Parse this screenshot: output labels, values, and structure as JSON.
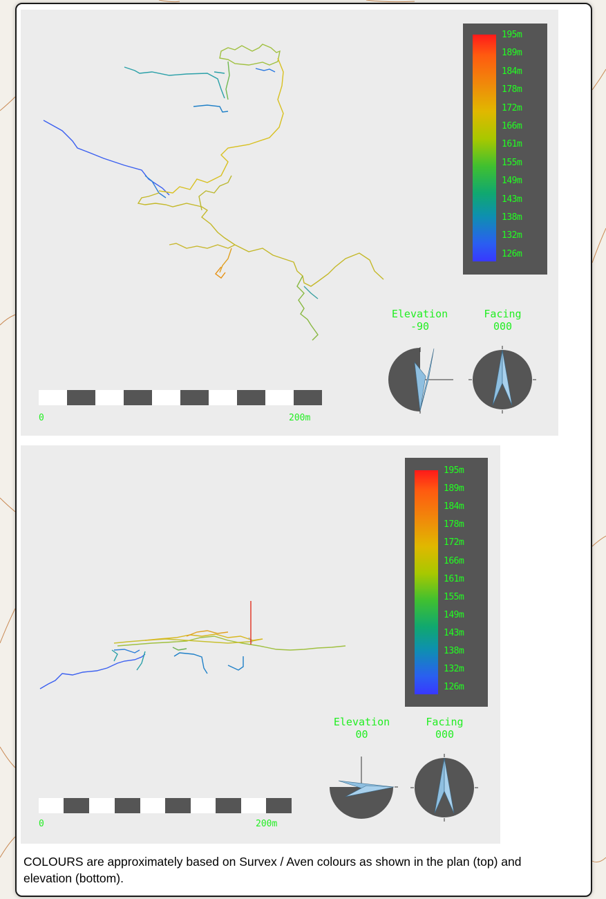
{
  "legend_ticks": [
    "195m",
    "189m",
    "184m",
    "178m",
    "172m",
    "166m",
    "161m",
    "155m",
    "149m",
    "143m",
    "138m",
    "132m",
    "126m"
  ],
  "plan": {
    "elevation_label": "Elevation",
    "elevation_value": "-90",
    "facing_label": "Facing",
    "facing_value": "000",
    "scale_start": "0",
    "scale_end": "200m"
  },
  "elev": {
    "elevation_label": "Elevation",
    "elevation_value": "00",
    "facing_label": "Facing",
    "facing_value": "000",
    "scale_start": "0",
    "scale_end": "200m"
  },
  "caption": "COLOURS are approximately based on Survex / Aven colours as shown in the plan (top) and elevation (bottom).",
  "colors": {
    "hud_text": "#22ee22",
    "panel_bg": "#ececec",
    "legend_bg": "#555555",
    "compass_dark": "#555555",
    "compass_needle": "#8fbfe0"
  }
}
